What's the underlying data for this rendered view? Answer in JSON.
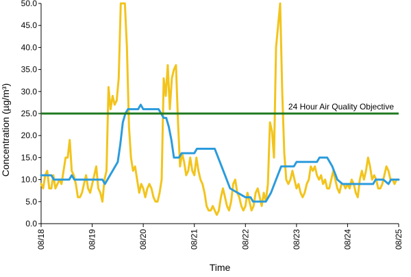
{
  "chart_data": {
    "type": "line",
    "title": "",
    "xlabel": "Time",
    "ylabel": "Concentration (µg/m³)",
    "xlim": [
      0,
      7
    ],
    "ylim": [
      0,
      50
    ],
    "y_ticks": [
      "0.0",
      "5.0",
      "10.0",
      "15.0",
      "20.0",
      "25.0",
      "30.0",
      "35.0",
      "40.0",
      "45.0",
      "50.0"
    ],
    "x_ticks": [
      "08/18",
      "08/19",
      "08/20",
      "08/21",
      "08/22",
      "08/23",
      "08/24",
      "08/25"
    ],
    "grid": false,
    "legend": "none",
    "colors": {
      "yellow_series": "#f2c41c",
      "blue_series": "#2b9bdc",
      "objective_line": "#1f7a1f",
      "axis": "#000000"
    },
    "objective": {
      "label": "24 Hour Air Quality Objective",
      "value": 25
    },
    "series": [
      {
        "color": "#f2c41c",
        "points": [
          [
            0.0,
            9
          ],
          [
            0.04,
            8
          ],
          [
            0.08,
            11
          ],
          [
            0.12,
            12
          ],
          [
            0.16,
            8
          ],
          [
            0.2,
            8
          ],
          [
            0.24,
            11
          ],
          [
            0.28,
            8
          ],
          [
            0.32,
            9
          ],
          [
            0.36,
            10
          ],
          [
            0.4,
            9
          ],
          [
            0.44,
            12
          ],
          [
            0.48,
            15
          ],
          [
            0.52,
            15
          ],
          [
            0.56,
            19
          ],
          [
            0.6,
            12
          ],
          [
            0.64,
            11
          ],
          [
            0.68,
            9
          ],
          [
            0.72,
            6
          ],
          [
            0.76,
            6
          ],
          [
            0.8,
            7
          ],
          [
            0.84,
            9
          ],
          [
            0.88,
            11
          ],
          [
            0.92,
            8
          ],
          [
            0.96,
            7
          ],
          [
            1.0,
            9
          ],
          [
            1.04,
            11
          ],
          [
            1.08,
            13
          ],
          [
            1.12,
            8
          ],
          [
            1.16,
            7
          ],
          [
            1.2,
            5
          ],
          [
            1.24,
            10
          ],
          [
            1.28,
            12
          ],
          [
            1.32,
            31
          ],
          [
            1.36,
            26
          ],
          [
            1.4,
            29
          ],
          [
            1.44,
            27
          ],
          [
            1.48,
            28
          ],
          [
            1.52,
            33
          ],
          [
            1.56,
            50
          ],
          [
            1.6,
            50
          ],
          [
            1.64,
            50
          ],
          [
            1.68,
            40
          ],
          [
            1.72,
            22
          ],
          [
            1.76,
            15
          ],
          [
            1.8,
            12
          ],
          [
            1.84,
            13
          ],
          [
            1.88,
            10
          ],
          [
            1.92,
            7
          ],
          [
            1.96,
            9
          ],
          [
            2.0,
            8
          ],
          [
            2.04,
            6
          ],
          [
            2.08,
            8
          ],
          [
            2.12,
            9
          ],
          [
            2.16,
            8
          ],
          [
            2.2,
            6
          ],
          [
            2.24,
            5
          ],
          [
            2.28,
            5
          ],
          [
            2.32,
            7
          ],
          [
            2.36,
            10
          ],
          [
            2.4,
            33
          ],
          [
            2.44,
            29
          ],
          [
            2.48,
            36
          ],
          [
            2.52,
            26
          ],
          [
            2.56,
            33
          ],
          [
            2.6,
            35
          ],
          [
            2.64,
            36
          ],
          [
            2.68,
            23
          ],
          [
            2.72,
            13
          ],
          [
            2.76,
            16
          ],
          [
            2.8,
            14
          ],
          [
            2.84,
            11
          ],
          [
            2.88,
            12
          ],
          [
            2.92,
            15
          ],
          [
            2.96,
            12
          ],
          [
            3.0,
            11
          ],
          [
            3.04,
            15
          ],
          [
            3.08,
            12
          ],
          [
            3.12,
            10
          ],
          [
            3.16,
            9
          ],
          [
            3.2,
            7
          ],
          [
            3.24,
            4
          ],
          [
            3.28,
            3
          ],
          [
            3.32,
            3
          ],
          [
            3.36,
            4
          ],
          [
            3.4,
            3
          ],
          [
            3.44,
            2
          ],
          [
            3.48,
            3
          ],
          [
            3.52,
            6
          ],
          [
            3.56,
            8
          ],
          [
            3.6,
            6
          ],
          [
            3.64,
            4
          ],
          [
            3.68,
            3
          ],
          [
            3.72,
            5
          ],
          [
            3.76,
            9
          ],
          [
            3.8,
            10
          ],
          [
            3.84,
            7
          ],
          [
            3.88,
            6
          ],
          [
            3.92,
            4
          ],
          [
            3.96,
            3
          ],
          [
            4.0,
            4
          ],
          [
            4.04,
            7
          ],
          [
            4.08,
            5
          ],
          [
            4.12,
            3
          ],
          [
            4.16,
            4
          ],
          [
            4.2,
            7
          ],
          [
            4.24,
            8
          ],
          [
            4.28,
            6
          ],
          [
            4.32,
            4
          ],
          [
            4.36,
            7
          ],
          [
            4.4,
            5
          ],
          [
            4.44,
            9
          ],
          [
            4.48,
            23
          ],
          [
            4.52,
            21
          ],
          [
            4.56,
            15
          ],
          [
            4.6,
            40
          ],
          [
            4.64,
            45
          ],
          [
            4.68,
            50
          ],
          [
            4.72,
            30
          ],
          [
            4.76,
            16
          ],
          [
            4.8,
            10
          ],
          [
            4.84,
            9
          ],
          [
            4.88,
            10
          ],
          [
            4.92,
            12
          ],
          [
            4.96,
            10
          ],
          [
            5.0,
            8
          ],
          [
            5.04,
            9
          ],
          [
            5.08,
            7
          ],
          [
            5.12,
            6
          ],
          [
            5.16,
            7
          ],
          [
            5.2,
            9
          ],
          [
            5.24,
            10
          ],
          [
            5.28,
            13
          ],
          [
            5.32,
            12
          ],
          [
            5.36,
            13
          ],
          [
            5.4,
            11
          ],
          [
            5.44,
            10
          ],
          [
            5.48,
            11
          ],
          [
            5.52,
            9
          ],
          [
            5.56,
            10
          ],
          [
            5.6,
            8
          ],
          [
            5.64,
            8
          ],
          [
            5.68,
            10
          ],
          [
            5.72,
            12
          ],
          [
            5.76,
            10
          ],
          [
            5.8,
            8
          ],
          [
            5.84,
            7
          ],
          [
            5.88,
            9
          ],
          [
            5.92,
            9
          ],
          [
            5.96,
            8
          ],
          [
            6.0,
            9
          ],
          [
            6.04,
            8
          ],
          [
            6.08,
            10
          ],
          [
            6.12,
            9
          ],
          [
            6.16,
            7
          ],
          [
            6.2,
            6
          ],
          [
            6.24,
            10
          ],
          [
            6.28,
            12
          ],
          [
            6.32,
            10
          ],
          [
            6.36,
            12
          ],
          [
            6.4,
            15
          ],
          [
            6.44,
            13
          ],
          [
            6.48,
            10
          ],
          [
            6.52,
            11
          ],
          [
            6.56,
            10
          ],
          [
            6.6,
            8
          ],
          [
            6.64,
            8
          ],
          [
            6.68,
            9
          ],
          [
            6.72,
            11
          ],
          [
            6.76,
            13
          ],
          [
            6.8,
            12
          ],
          [
            6.84,
            10
          ],
          [
            6.88,
            10
          ],
          [
            6.92,
            9
          ],
          [
            6.96,
            10
          ],
          [
            7.0,
            10
          ]
        ]
      },
      {
        "color": "#2b9bdc",
        "points": [
          [
            0.0,
            11
          ],
          [
            0.2,
            11
          ],
          [
            0.25,
            10
          ],
          [
            0.55,
            10
          ],
          [
            0.6,
            11
          ],
          [
            0.65,
            10
          ],
          [
            1.0,
            10
          ],
          [
            1.2,
            10
          ],
          [
            1.25,
            9
          ],
          [
            1.3,
            10
          ],
          [
            1.4,
            12
          ],
          [
            1.5,
            14
          ],
          [
            1.55,
            18
          ],
          [
            1.6,
            23
          ],
          [
            1.65,
            25
          ],
          [
            1.7,
            26
          ],
          [
            1.9,
            26
          ],
          [
            1.95,
            27
          ],
          [
            2.0,
            26
          ],
          [
            2.3,
            26
          ],
          [
            2.35,
            25
          ],
          [
            2.4,
            24
          ],
          [
            2.45,
            24
          ],
          [
            2.5,
            22
          ],
          [
            2.55,
            19
          ],
          [
            2.6,
            15
          ],
          [
            2.7,
            15
          ],
          [
            2.75,
            16
          ],
          [
            3.0,
            16
          ],
          [
            3.05,
            17
          ],
          [
            3.4,
            17
          ],
          [
            3.5,
            14
          ],
          [
            3.6,
            11
          ],
          [
            3.7,
            8
          ],
          [
            3.85,
            7
          ],
          [
            4.0,
            6
          ],
          [
            4.1,
            6
          ],
          [
            4.15,
            5
          ],
          [
            4.4,
            5
          ],
          [
            4.5,
            7
          ],
          [
            4.6,
            10
          ],
          [
            4.7,
            13
          ],
          [
            4.95,
            13
          ],
          [
            5.0,
            14
          ],
          [
            5.4,
            14
          ],
          [
            5.45,
            15
          ],
          [
            5.6,
            15
          ],
          [
            5.7,
            13
          ],
          [
            5.8,
            10
          ],
          [
            5.9,
            9
          ],
          [
            6.5,
            9
          ],
          [
            6.55,
            10
          ],
          [
            6.7,
            10
          ],
          [
            6.8,
            9
          ],
          [
            6.85,
            10
          ],
          [
            7.0,
            10
          ]
        ]
      }
    ]
  }
}
